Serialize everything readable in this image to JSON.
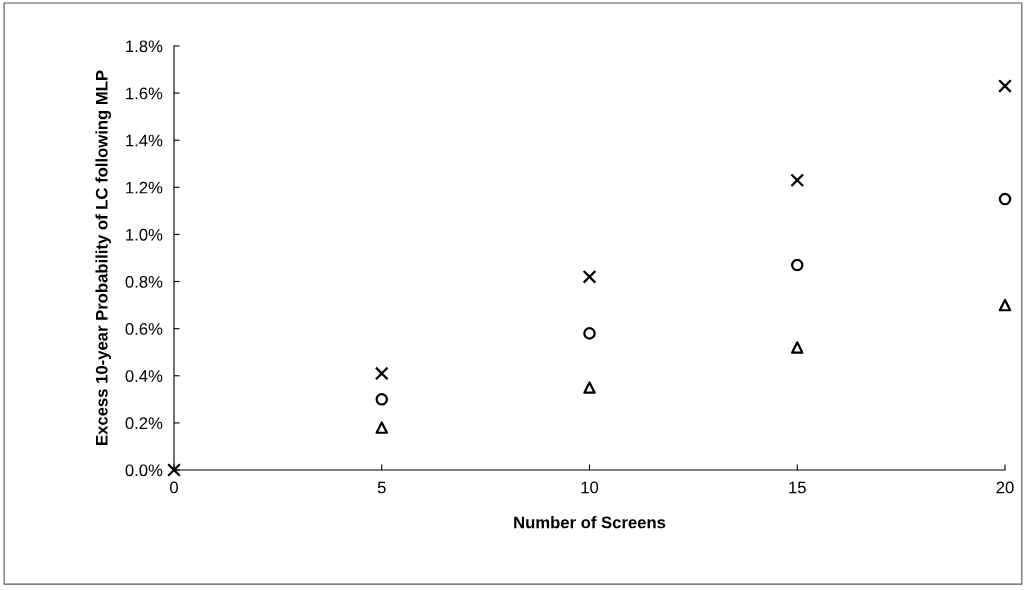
{
  "chart_data": {
    "type": "scatter",
    "xlabel": "Number of Screens",
    "ylabel": "Excess 10-year Probability of LC following MLP",
    "x": [
      0,
      5,
      10,
      15,
      20
    ],
    "series": [
      {
        "color": "#000000",
        "marker": "cross",
        "values": [
          0,
          0.41,
          0.82,
          1.23,
          1.63
        ]
      },
      {
        "color": "#000000",
        "marker": "circle",
        "values": [
          null,
          0.3,
          0.58,
          0.87,
          1.15
        ]
      },
      {
        "color": "#000000",
        "marker": "triangle",
        "values": [
          null,
          0.18,
          0.35,
          0.52,
          0.7
        ]
      }
    ],
    "xlim": [
      0,
      20
    ],
    "xticks": [
      0,
      5,
      10,
      15,
      20
    ],
    "ylim": [
      0,
      1.8
    ],
    "yticks": [
      {
        "value": 0,
        "label": "0.0%"
      },
      {
        "value": 0.2,
        "label": "0.2%"
      },
      {
        "value": 0.4,
        "label": "0.4%"
      },
      {
        "value": 0.6,
        "label": "0.6%"
      },
      {
        "value": 0.8,
        "label": "0.8%"
      },
      {
        "value": 1.0,
        "label": "1.0%"
      },
      {
        "value": 1.2,
        "label": "1.2%"
      },
      {
        "value": 1.4,
        "label": "1.4%"
      },
      {
        "value": 1.6,
        "label": "1.6%"
      },
      {
        "value": 1.8,
        "label": "1.8%"
      }
    ],
    "grid": false,
    "legend": false
  }
}
